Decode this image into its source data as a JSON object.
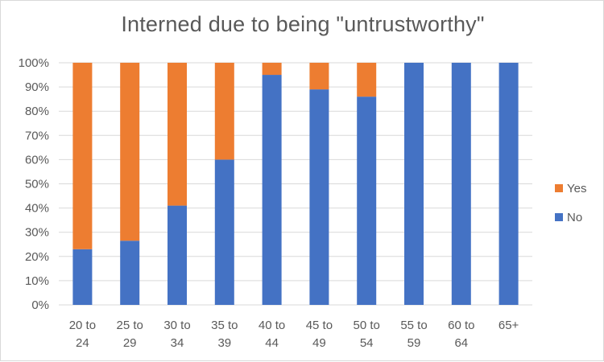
{
  "chart_data": {
    "type": "bar",
    "stacked": true,
    "title": "Interned due to being \"untrustworthy\"",
    "categories": [
      [
        "20 to",
        "24"
      ],
      [
        "25 to",
        "29"
      ],
      [
        "30 to",
        "34"
      ],
      [
        "35 to",
        "39"
      ],
      [
        "40 to",
        "44"
      ],
      [
        "45 to",
        "49"
      ],
      [
        "50 to",
        "54"
      ],
      [
        "55 to",
        "59"
      ],
      [
        "60 to",
        "64"
      ],
      [
        "65+"
      ]
    ],
    "series": [
      {
        "name": "No",
        "color": "#4472C4",
        "values": [
          0.23,
          0.265,
          0.41,
          0.6,
          0.95,
          0.89,
          0.86,
          1.0,
          1.0,
          1.0
        ]
      },
      {
        "name": "Yes",
        "color": "#ED7D31",
        "values": [
          0.77,
          0.735,
          0.59,
          0.4,
          0.05,
          0.11,
          0.14,
          0.0,
          0.0,
          0.0
        ]
      }
    ],
    "ylim": [
      0,
      1
    ],
    "yticks": [
      "0%",
      "10%",
      "20%",
      "30%",
      "40%",
      "50%",
      "60%",
      "70%",
      "80%",
      "90%",
      "100%"
    ],
    "legend": {
      "position": "right",
      "order": [
        "Yes",
        "No"
      ]
    },
    "grid": true,
    "gridColor": "#d9d9d9"
  }
}
